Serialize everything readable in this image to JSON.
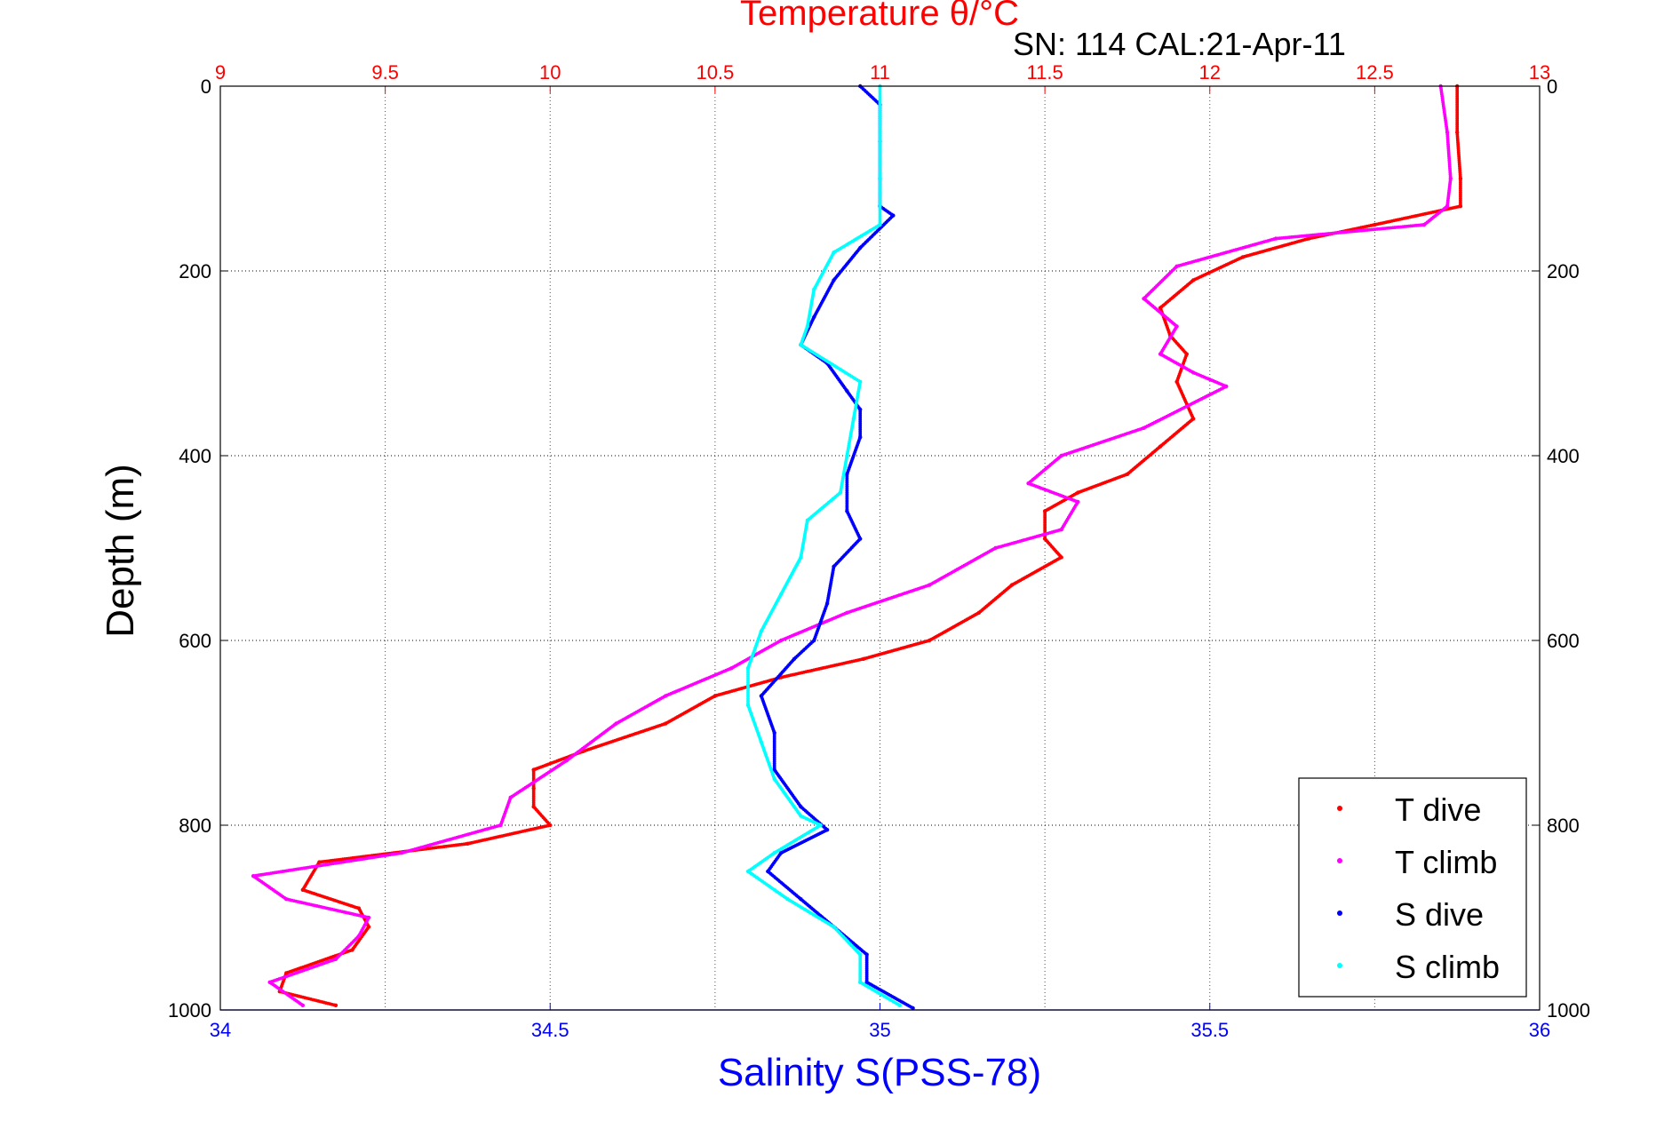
{
  "chart_data": {
    "type": "scatter",
    "title": "Temperature θ/°C",
    "subtitle": "SN: 114  CAL:21-Apr-11",
    "xlabel": "Salinity S(PSS-78)",
    "ylabel": "Depth (m)",
    "x_top": {
      "label": "Temperature θ/°C",
      "lim": [
        9,
        13
      ],
      "ticks": [
        "9",
        "9.5",
        "10",
        "10.5",
        "11",
        "11.5",
        "12",
        "12.5",
        "13"
      ],
      "color": "#ff0000",
      "grid": true
    },
    "x_bottom": {
      "label": "Salinity S(PSS-78)",
      "lim": [
        34,
        36
      ],
      "ticks": [
        "34",
        "34.5",
        "35",
        "35.5",
        "36"
      ],
      "color": "#0000ff"
    },
    "y": {
      "label": "Depth (m)",
      "lim": [
        0,
        1000
      ],
      "reversed": true,
      "ticks": [
        "0",
        "200",
        "400",
        "600",
        "800",
        "1000"
      ],
      "grid": true
    },
    "legend": {
      "position": "bottom-right"
    },
    "series": [
      {
        "name": "T dive",
        "axis": "temperature",
        "color": "#ff0000",
        "points": [
          [
            12.75,
            0
          ],
          [
            12.75,
            50
          ],
          [
            12.76,
            100
          ],
          [
            12.76,
            130
          ],
          [
            12.5,
            150
          ],
          [
            12.3,
            165
          ],
          [
            12.1,
            185
          ],
          [
            11.95,
            210
          ],
          [
            11.85,
            240
          ],
          [
            11.88,
            270
          ],
          [
            11.93,
            290
          ],
          [
            11.9,
            320
          ],
          [
            11.95,
            360
          ],
          [
            11.85,
            390
          ],
          [
            11.75,
            420
          ],
          [
            11.6,
            440
          ],
          [
            11.5,
            460
          ],
          [
            11.5,
            490
          ],
          [
            11.55,
            510
          ],
          [
            11.4,
            540
          ],
          [
            11.3,
            570
          ],
          [
            11.15,
            600
          ],
          [
            10.95,
            620
          ],
          [
            10.7,
            640
          ],
          [
            10.5,
            660
          ],
          [
            10.35,
            690
          ],
          [
            10.1,
            720
          ],
          [
            9.95,
            740
          ],
          [
            9.95,
            760
          ],
          [
            9.95,
            780
          ],
          [
            10,
            800
          ],
          [
            9.75,
            820
          ],
          [
            9.3,
            840
          ],
          [
            9.25,
            870
          ],
          [
            9.42,
            890
          ],
          [
            9.45,
            910
          ],
          [
            9.4,
            935
          ],
          [
            9.2,
            960
          ],
          [
            9.18,
            980
          ],
          [
            9.35,
            995
          ]
        ]
      },
      {
        "name": "T climb",
        "axis": "temperature",
        "color": "#ff00ff",
        "points": [
          [
            12.7,
            0
          ],
          [
            12.72,
            50
          ],
          [
            12.73,
            100
          ],
          [
            12.72,
            130
          ],
          [
            12.65,
            150
          ],
          [
            12.2,
            165
          ],
          [
            11.9,
            195
          ],
          [
            11.8,
            230
          ],
          [
            11.9,
            260
          ],
          [
            11.85,
            290
          ],
          [
            11.95,
            310
          ],
          [
            12.05,
            325
          ],
          [
            11.8,
            370
          ],
          [
            11.55,
            400
          ],
          [
            11.45,
            430
          ],
          [
            11.6,
            450
          ],
          [
            11.55,
            480
          ],
          [
            11.35,
            500
          ],
          [
            11.15,
            540
          ],
          [
            10.9,
            570
          ],
          [
            10.7,
            600
          ],
          [
            10.55,
            630
          ],
          [
            10.35,
            660
          ],
          [
            10.2,
            690
          ],
          [
            10.05,
            730
          ],
          [
            9.88,
            770
          ],
          [
            9.85,
            800
          ],
          [
            9.55,
            830
          ],
          [
            9.1,
            855
          ],
          [
            9.2,
            880
          ],
          [
            9.45,
            900
          ],
          [
            9.42,
            920
          ],
          [
            9.35,
            945
          ],
          [
            9.15,
            970
          ],
          [
            9.25,
            995
          ]
        ]
      },
      {
        "name": "S dive",
        "axis": "salinity",
        "color": "#0000ff",
        "points": [
          [
            34.97,
            0
          ],
          [
            35,
            20
          ],
          [
            35,
            60
          ],
          [
            35,
            100
          ],
          [
            35,
            130
          ],
          [
            35.02,
            140
          ],
          [
            34.97,
            175
          ],
          [
            34.93,
            210
          ],
          [
            34.9,
            250
          ],
          [
            34.88,
            280
          ],
          [
            34.92,
            300
          ],
          [
            34.95,
            330
          ],
          [
            34.97,
            350
          ],
          [
            34.97,
            380
          ],
          [
            34.95,
            420
          ],
          [
            34.95,
            460
          ],
          [
            34.97,
            490
          ],
          [
            34.93,
            520
          ],
          [
            34.92,
            560
          ],
          [
            34.9,
            600
          ],
          [
            34.87,
            620
          ],
          [
            34.82,
            660
          ],
          [
            34.84,
            700
          ],
          [
            34.84,
            740
          ],
          [
            34.88,
            780
          ],
          [
            34.92,
            805
          ],
          [
            34.85,
            830
          ],
          [
            34.83,
            850
          ],
          [
            34.88,
            880
          ],
          [
            34.93,
            910
          ],
          [
            34.98,
            940
          ],
          [
            34.98,
            970
          ],
          [
            35.05,
            998
          ]
        ]
      },
      {
        "name": "S climb",
        "axis": "salinity",
        "color": "#00ffff",
        "points": [
          [
            35,
            0
          ],
          [
            35,
            60
          ],
          [
            35,
            100
          ],
          [
            35,
            150
          ],
          [
            34.93,
            180
          ],
          [
            34.9,
            220
          ],
          [
            34.89,
            260
          ],
          [
            34.88,
            280
          ],
          [
            34.97,
            320
          ],
          [
            34.96,
            360
          ],
          [
            34.95,
            400
          ],
          [
            34.94,
            440
          ],
          [
            34.89,
            470
          ],
          [
            34.88,
            510
          ],
          [
            34.85,
            550
          ],
          [
            34.82,
            590
          ],
          [
            34.8,
            630
          ],
          [
            34.8,
            670
          ],
          [
            34.82,
            710
          ],
          [
            34.84,
            750
          ],
          [
            34.88,
            790
          ],
          [
            34.91,
            800
          ],
          [
            34.84,
            830
          ],
          [
            34.8,
            850
          ],
          [
            34.86,
            880
          ],
          [
            34.93,
            910
          ],
          [
            34.97,
            940
          ],
          [
            34.97,
            970
          ],
          [
            35.03,
            995
          ]
        ]
      }
    ]
  }
}
